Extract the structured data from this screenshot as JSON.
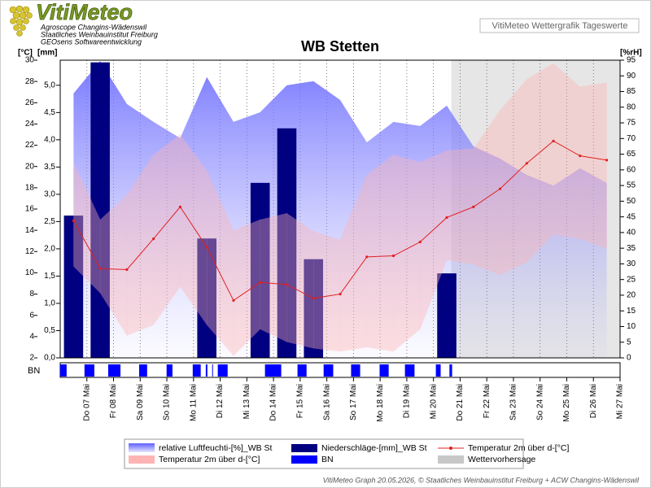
{
  "header": {
    "logo": "VitiMeteo",
    "lines": [
      "Agroscope Changins-Wädenswil",
      "Staatliches Weinbauinstitut Freiburg",
      "GEOsens Softwareentwicklung"
    ],
    "caption": "VitiMeteo Wettergrafik Tageswerte"
  },
  "footer": "VitiMeteo Graph 20.05.2026, © Staatliches Weinbauinstitut Freiburg + ACW Changins-Wädenswil",
  "chart_data": {
    "type": "combo",
    "title": "WB Stetten",
    "y_label": "[°C]",
    "y3_label": "[mm]",
    "y2_label": "[%rH]",
    "categories": [
      "Do 07 Mai",
      "Fr 08 Mai",
      "Sa 09 Mai",
      "So 10 Mai",
      "Mo 11 Mai",
      "Di 12 Mai",
      "Mi 13 Mai",
      "Do 14 Mai",
      "Fr 15 Mai",
      "Sa 16 Mai",
      "So 17 Mai",
      "Mo 18 Mai",
      "Di 19 Mai",
      "Mi 20 Mai",
      "Do 21 Mai",
      "Fr 22 Mai",
      "Sa 23 Mai",
      "So 24 Mai",
      "Mo 25 Mai",
      "Di 26 Mai",
      "Mi 27 Mai"
    ],
    "ylim": [
      2,
      30
    ],
    "yticks": [
      2,
      4,
      6,
      8,
      10,
      12,
      14,
      16,
      18,
      20,
      22,
      24,
      26,
      28,
      30
    ],
    "y3lim": [
      0,
      5.46
    ],
    "y3ticks": [
      {
        "value": 0,
        "label": "0,0"
      },
      {
        "value": 0.5,
        "label": "0,5"
      },
      {
        "value": 1,
        "label": "1,0"
      },
      {
        "value": 1.5,
        "label": "1,5"
      },
      {
        "value": 2,
        "label": "2,0"
      },
      {
        "value": 2.5,
        "label": "2,5"
      },
      {
        "value": 3,
        "label": "3,0"
      },
      {
        "value": 3.5,
        "label": "3,5"
      },
      {
        "value": 4,
        "label": "4,0"
      },
      {
        "value": 4.5,
        "label": "4,5"
      },
      {
        "value": 5,
        "label": "5,0"
      }
    ],
    "y2lim": [
      0,
      95
    ],
    "y2ticks": [
      0,
      5,
      10,
      15,
      20,
      25,
      30,
      35,
      40,
      45,
      50,
      55,
      60,
      65,
      70,
      75,
      80,
      85,
      90,
      95
    ],
    "forecast_from": "Mi 20 Mai",
    "series": [
      {
        "name": "relative Luftfeuchti-[%]_WB St",
        "type": "area",
        "axis": "y2",
        "color": "#7070ff",
        "values": [
          84.4,
          94.7,
          81.0,
          75.3,
          70.1,
          89.6,
          75.3,
          78.4,
          87.0,
          88.3,
          82.3,
          68.8,
          75.3,
          74.0,
          80.5,
          67.5,
          63.6,
          58.4,
          55.0,
          60.5,
          55.8
        ]
      },
      {
        "name": "Niederschläge-[mm]_WB St",
        "type": "bar",
        "axis": "y3",
        "color": "#000080",
        "values": [
          2.61,
          5.42,
          0,
          0,
          0,
          2.19,
          0,
          3.21,
          4.21,
          1.81,
          0,
          0,
          0,
          0,
          1.55,
          0,
          0,
          0,
          0,
          0,
          0
        ]
      },
      {
        "name": "Temperatur 2m über d-[°C]",
        "type": "line",
        "axis": "y",
        "color": "#e02020",
        "values": [
          14.9,
          10.4,
          10.3,
          13.2,
          16.2,
          12.4,
          7.4,
          9.1,
          8.9,
          7.6,
          8.0,
          11.5,
          11.6,
          12.9,
          15.2,
          16.2,
          17.9,
          20.3,
          22.4,
          21.0,
          20.6
        ]
      },
      {
        "name": "Temperatur 2m über d-[°C]",
        "type": "band",
        "axis": "y",
        "color": "#ffb4b4",
        "high": [
          20.4,
          15.0,
          17.3,
          21.1,
          23.0,
          19.6,
          14.0,
          15.0,
          15.6,
          13.9,
          13.1,
          19.2,
          21.1,
          20.4,
          21.5,
          21.7,
          25.3,
          28.2,
          29.7,
          27.5,
          27.9
        ],
        "low": [
          10.6,
          8.1,
          4.1,
          5.1,
          8.7,
          5.1,
          2.2,
          4.7,
          3.5,
          2.9,
          2.6,
          3.0,
          2.6,
          4.7,
          11.2,
          10.8,
          9.8,
          11.0,
          13.6,
          13.2,
          12.3
        ]
      },
      {
        "name": "BN",
        "type": "strip",
        "color": "#0000ff",
        "intervals": [
          [
            0,
            0.24
          ],
          [
            0.91,
            1.28
          ],
          [
            1.8,
            2.26
          ],
          [
            2.96,
            3.26
          ],
          [
            3.99,
            4.21
          ],
          [
            4.97,
            5.27
          ],
          [
            5.46,
            5.52
          ],
          [
            5.7,
            5.73
          ],
          [
            5.91,
            6.28
          ],
          [
            7.68,
            8.29
          ],
          [
            8.9,
            9.24
          ],
          [
            9.88,
            10.24
          ],
          [
            10.91,
            11.25
          ],
          [
            11.98,
            12.32
          ],
          [
            12.93,
            13.29
          ],
          [
            14.09,
            14.27
          ],
          [
            14.6,
            14.7
          ]
        ]
      },
      {
        "name": "Wettervorhersage",
        "type": "span",
        "color": "#c8c8c8"
      }
    ]
  }
}
